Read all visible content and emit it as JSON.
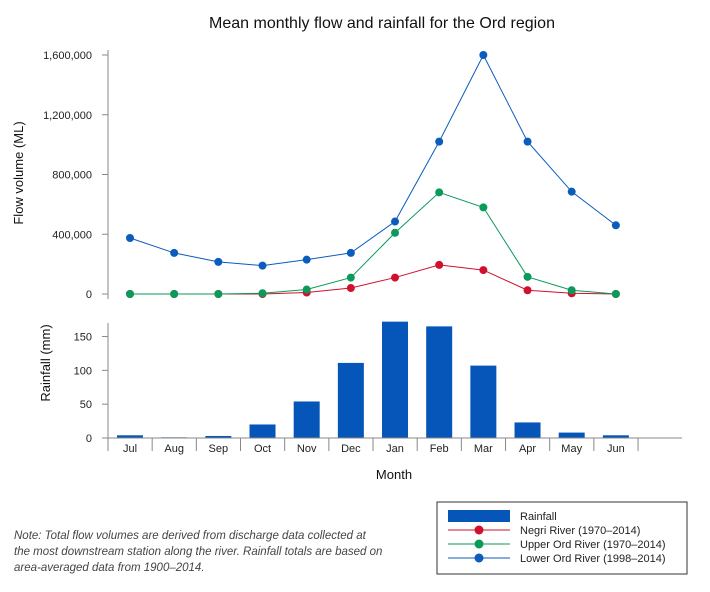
{
  "chart_data": {
    "type": "line+bar",
    "title": "Mean monthly flow and rainfall for the Ord region",
    "xlabel": "Month",
    "categories": [
      "Jul",
      "Aug",
      "Sep",
      "Oct",
      "Nov",
      "Dec",
      "Jan",
      "Feb",
      "Mar",
      "Apr",
      "May",
      "Jun"
    ],
    "flow": {
      "ylabel": "Flow volume (ML)",
      "ylim": [
        0,
        1600000
      ],
      "ticks": [
        0,
        400000,
        800000,
        1200000,
        1600000
      ],
      "tick_labels": [
        "0",
        "400,000",
        "800,000",
        "1,200,000",
        "1,600,000"
      ],
      "series": [
        {
          "name": "Negri River (1970–2014)",
          "color": "#d0102e",
          "values": [
            0,
            0,
            0,
            0,
            10000,
            40000,
            110000,
            195000,
            160000,
            25000,
            5000,
            0
          ]
        },
        {
          "name": "Upper Ord River (1970–2014)",
          "color": "#0a9a5a",
          "values": [
            0,
            0,
            0,
            5000,
            30000,
            110000,
            410000,
            680000,
            580000,
            115000,
            25000,
            0
          ]
        },
        {
          "name": "Lower Ord River (1998–2014)",
          "color": "#0b5cbd",
          "values": [
            375000,
            275000,
            215000,
            190000,
            230000,
            275000,
            485000,
            1020000,
            1600000,
            1020000,
            685000,
            460000
          ]
        }
      ]
    },
    "rainfall": {
      "ylabel": "Rainfall (mm)",
      "ylim": [
        0,
        170
      ],
      "ticks": [
        0,
        50,
        100,
        150
      ],
      "tick_labels": [
        "0",
        "50",
        "100",
        "150"
      ],
      "name": "Rainfall",
      "color": "#0556b8",
      "values": [
        4,
        1,
        3,
        20,
        54,
        111,
        172,
        165,
        107,
        23,
        8,
        4
      ]
    },
    "legend_position": "bottom-right"
  },
  "note": "Note: Total flow volumes are derived from discharge data collected at the most downstream station along the river. Rainfall totals are based on area-averaged data from 1900–2014."
}
